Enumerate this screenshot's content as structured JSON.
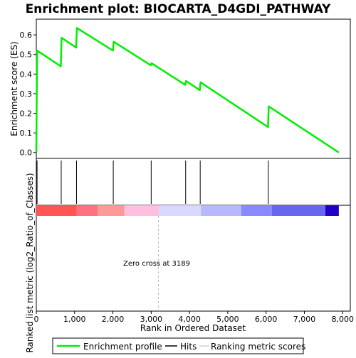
{
  "chart_data": {
    "type": "line",
    "title": "Enrichment plot: BIOCARTA_D4GDI_PATHWAY",
    "top_panel": {
      "ylabel": "Enrichment score (ES)",
      "ylim": [
        -0.03,
        0.68
      ],
      "yticks": [
        0.0,
        0.1,
        0.2,
        0.3,
        0.4,
        0.5,
        0.6
      ],
      "ytick_labels": [
        "0.0",
        "0.1",
        "0.2",
        "0.3",
        "0.4",
        "0.5",
        "0.6"
      ],
      "series": [
        {
          "name": "Enrichment profile",
          "color": "#00ee00",
          "x": [
            0,
            20,
            640,
            660,
            1040,
            1060,
            2000,
            2020,
            2990,
            3010,
            3890,
            3910,
            4270,
            4290,
            6050,
            6070,
            7900
          ],
          "y": [
            0.0,
            0.52,
            0.44,
            0.585,
            0.535,
            0.635,
            0.52,
            0.565,
            0.445,
            0.455,
            0.345,
            0.365,
            0.318,
            0.358,
            0.13,
            0.235,
            0.0
          ]
        }
      ]
    },
    "hits": {
      "name": "Hits",
      "color": "#000000",
      "x": [
        20,
        650,
        1050,
        2010,
        3000,
        3900,
        4280,
        6060
      ]
    },
    "ranked_metric": {
      "name": "Ranking metric scores",
      "ylabel": "Ranked list metric (log2_Ratio_of_Classes)",
      "zero_cross_label": "Zero cross at 3189",
      "zero_cross_x": 3189,
      "gradient_segments": [
        {
          "x_start": 0,
          "x_end": 1050,
          "color": "#ff5555"
        },
        {
          "x_start": 1050,
          "x_end": 1600,
          "color": "#ff7080"
        },
        {
          "x_start": 1600,
          "x_end": 2300,
          "color": "#ff9999"
        },
        {
          "x_start": 2300,
          "x_end": 3200,
          "color": "#ffc0e0"
        },
        {
          "x_start": 3200,
          "x_end": 4300,
          "color": "#d8d8ff"
        },
        {
          "x_start": 4300,
          "x_end": 5350,
          "color": "#b8b8ff"
        },
        {
          "x_start": 5350,
          "x_end": 6150,
          "color": "#8888ff"
        },
        {
          "x_start": 6150,
          "x_end": 7550,
          "color": "#6666ee"
        },
        {
          "x_start": 7550,
          "x_end": 7900,
          "color": "#2200cc"
        }
      ]
    },
    "xlabel": "Rank in Ordered Dataset",
    "xlim": [
      0,
      8200
    ],
    "xticks": [
      0,
      1000,
      2000,
      3000,
      4000,
      5000,
      6000,
      7000,
      8000
    ],
    "xtick_labels": [
      "0",
      "1,000",
      "2,000",
      "3,000",
      "4,000",
      "5,000",
      "6,000",
      "7,000",
      "8,000"
    ],
    "legend": {
      "placement": "bottom",
      "entries": [
        "Enrichment profile",
        "Hits",
        "Ranking metric scores"
      ]
    }
  }
}
